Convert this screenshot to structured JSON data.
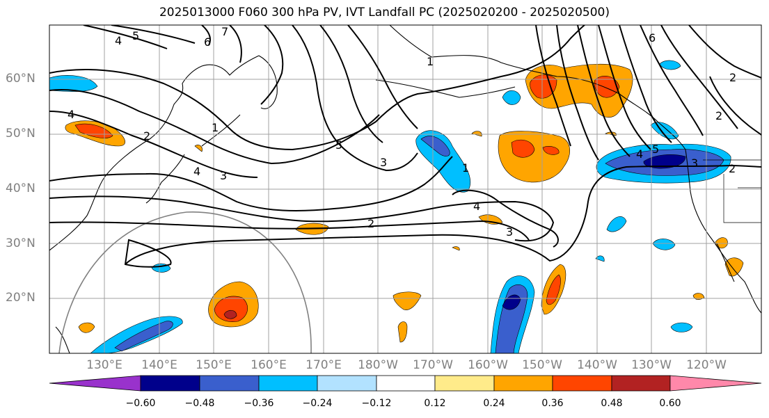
{
  "title": "2025013000 F060 300 hPa PV, IVT Landfall PC (2025020200 - 2025020500)",
  "lat_labels": [
    "60°N",
    "50°N",
    "40°N",
    "30°N",
    "20°N"
  ],
  "lon_labels": [
    "130°E",
    "140°E",
    "150°E",
    "160°E",
    "170°E",
    "180°W",
    "170°W",
    "160°W",
    "150°W",
    "140°W",
    "130°W",
    "120°W"
  ],
  "pv_contour_labels": [
    "4",
    "5",
    "7",
    "6",
    "4",
    "2",
    "1",
    "4",
    "3",
    "5",
    "3",
    "1",
    "2",
    "4",
    "3",
    "6",
    "2",
    "4",
    "5",
    "3",
    "2",
    "2",
    "1"
  ],
  "colorbar": {
    "tick_labels": [
      "−0.60",
      "−0.48",
      "−0.36",
      "−0.24",
      "−0.12",
      "0.12",
      "0.24",
      "0.36",
      "0.48",
      "0.60"
    ],
    "colors": [
      "#9932cc",
      "#00008b",
      "#3a5fcd",
      "#00bfff",
      "#b2e2ff",
      "#ffffff",
      "#ffeb8a",
      "#ffa500",
      "#ff4500",
      "#b22222",
      "#ff88aa"
    ]
  },
  "shading_colors": {
    "neg_1": "#b2e2ff",
    "neg_2": "#00bfff",
    "neg_3": "#3a5fcd",
    "neg_4": "#00008b",
    "pos_1": "#ffeb8a",
    "pos_2": "#ffa500",
    "pos_3": "#ff4500",
    "pos_4": "#b22222"
  }
}
